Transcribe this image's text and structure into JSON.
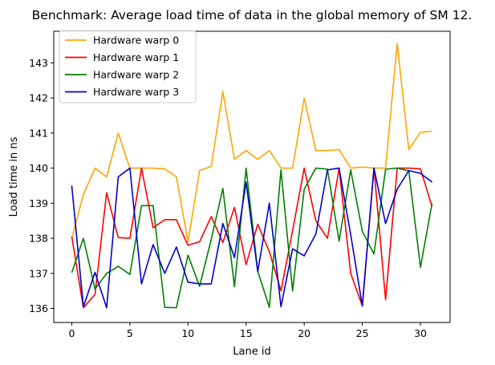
{
  "chart_data": {
    "type": "line",
    "title": "Benchmark: Average load time of data in the global memory of SM 12.",
    "xlabel": "Lane id",
    "ylabel": "Load time in ns",
    "xlim": [
      -1.55,
      32.55
    ],
    "ylim": [
      135.6,
      143.9
    ],
    "xticks": [
      0,
      5,
      10,
      15,
      20,
      25,
      30
    ],
    "yticks": [
      136,
      137,
      138,
      139,
      140,
      141,
      142,
      143
    ],
    "legend_position": "top-left",
    "x": [
      0,
      1,
      2,
      3,
      4,
      5,
      6,
      7,
      8,
      9,
      10,
      11,
      12,
      13,
      14,
      15,
      16,
      17,
      18,
      19,
      20,
      21,
      22,
      23,
      24,
      25,
      26,
      27,
      28,
      29,
      30,
      31
    ],
    "series": [
      {
        "name": "Hardware warp 0",
        "color": "#ffa500",
        "values": [
          138.0,
          139.25,
          140.0,
          139.75,
          141.0,
          140.0,
          140.0,
          140.0,
          139.98,
          139.75,
          137.9,
          139.93,
          140.05,
          142.18,
          140.25,
          140.5,
          140.25,
          140.5,
          140.0,
          140.0,
          142.0,
          140.5,
          140.5,
          140.53,
          140.0,
          140.03,
          140.0,
          140.0,
          143.55,
          140.53,
          141.02,
          141.05
        ]
      },
      {
        "name": "Hardware warp 1",
        "color": "#ff0000",
        "values": [
          138.05,
          136.02,
          136.4,
          139.3,
          138.02,
          138.0,
          140.0,
          138.3,
          138.53,
          138.53,
          137.8,
          137.9,
          138.62,
          137.88,
          138.88,
          137.25,
          138.4,
          137.62,
          136.5,
          138.22,
          140.0,
          138.5,
          138.0,
          140.0,
          137.0,
          136.07,
          140.0,
          136.25,
          140.0,
          140.0,
          139.98,
          138.9
        ]
      },
      {
        "name": "Hardware warp 2",
        "color": "#008000",
        "values": [
          137.02,
          138.0,
          136.55,
          137.0,
          137.2,
          136.97,
          138.93,
          138.93,
          136.03,
          136.02,
          137.52,
          136.63,
          137.97,
          139.42,
          136.62,
          140.0,
          137.07,
          136.03,
          139.95,
          136.5,
          139.4,
          140.0,
          139.97,
          137.92,
          139.95,
          138.2,
          137.55,
          139.97,
          140.0,
          139.92,
          137.17,
          139.0
        ]
      },
      {
        "name": "Hardware warp 3",
        "color": "#0000cd",
        "values": [
          139.5,
          136.05,
          137.03,
          136.02,
          139.75,
          140.0,
          136.7,
          137.82,
          137.0,
          137.75,
          136.75,
          136.7,
          136.7,
          138.42,
          137.45,
          139.6,
          137.05,
          139.0,
          136.05,
          137.7,
          137.5,
          138.12,
          139.95,
          140.0,
          138.1,
          136.07,
          140.0,
          138.42,
          139.4,
          139.93,
          139.85,
          139.6
        ]
      }
    ]
  }
}
